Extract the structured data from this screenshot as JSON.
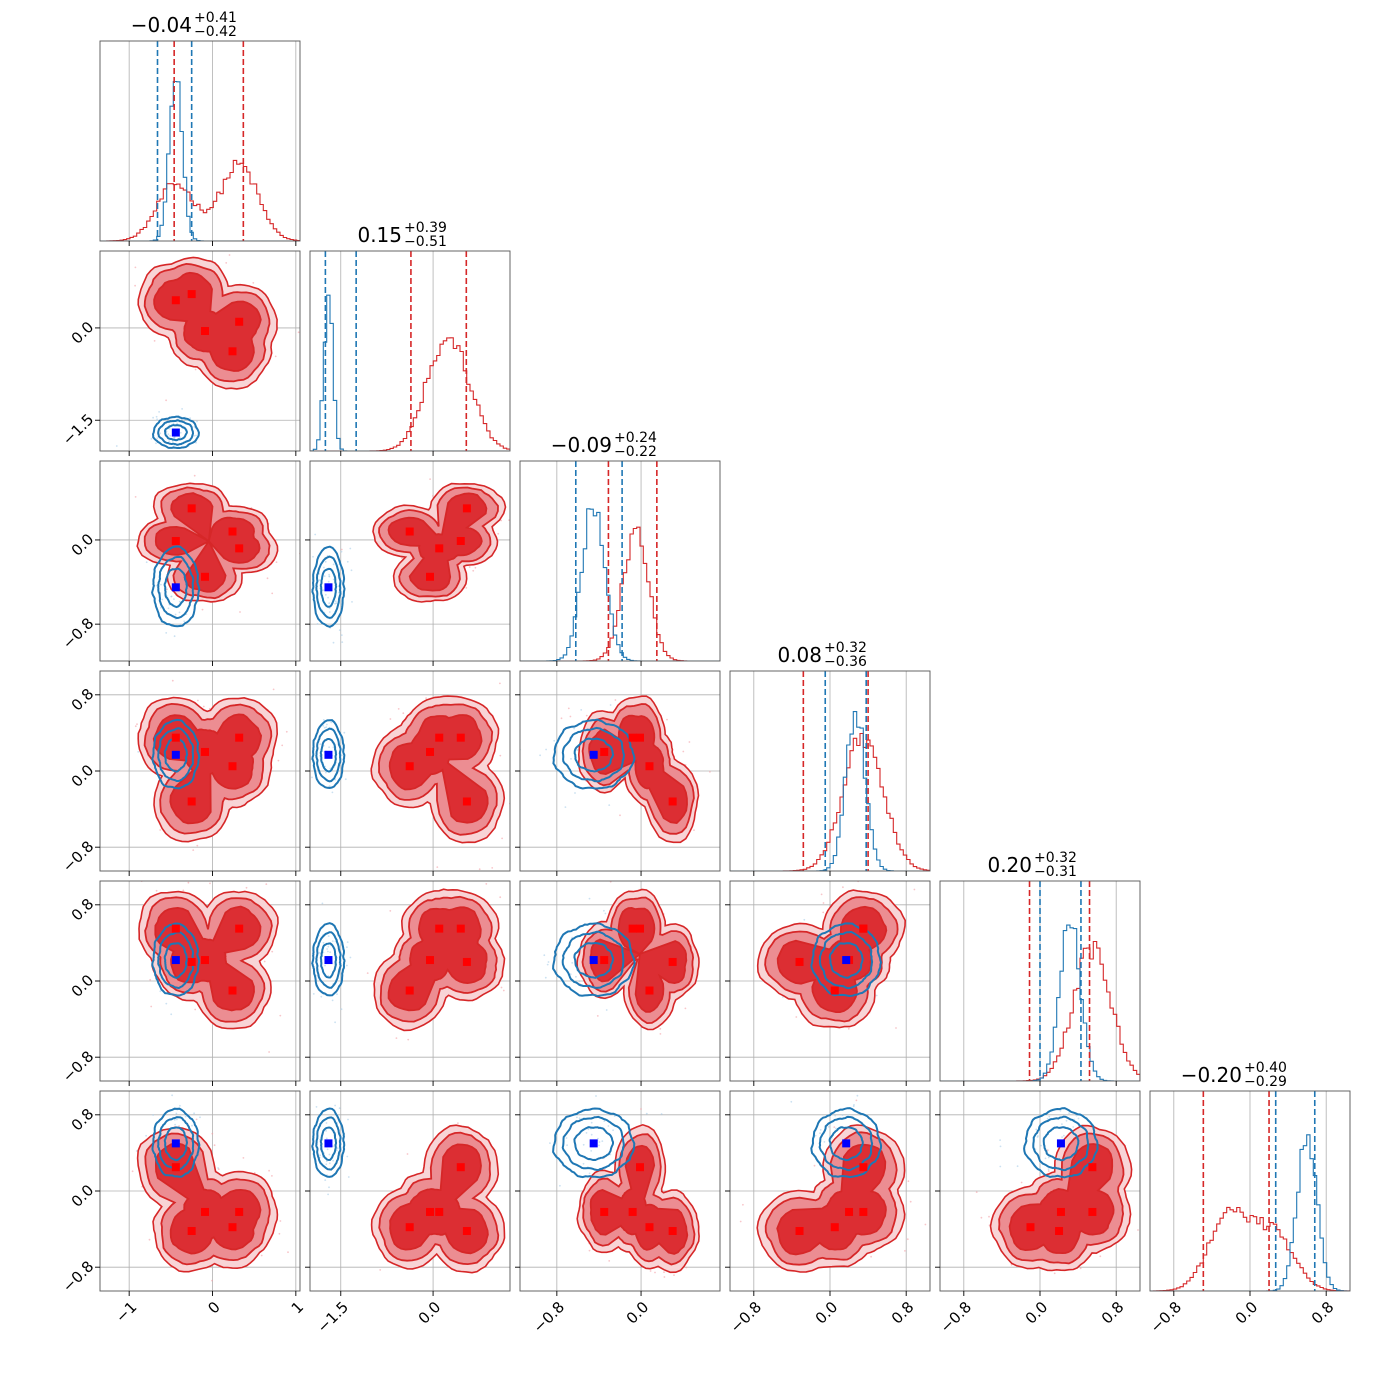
{
  "chart_data": {
    "type": "corner",
    "n_params": 6,
    "colors": {
      "red": "#d62728",
      "blue": "#1f77b4",
      "red_marker": "#ff0000",
      "blue_marker": "#0000ff",
      "grid": "#b0b0b0"
    },
    "ranges": [
      [
        -1.35,
        1.05
      ],
      [
        -2.0,
        1.25
      ],
      [
        -1.15,
        0.75
      ],
      [
        -1.05,
        1.05
      ],
      [
        -1.05,
        1.05
      ],
      [
        -1.05,
        1.05
      ]
    ],
    "ticks": [
      {
        "values": [
          -1,
          0,
          1
        ],
        "labels": [
          "−1",
          "0",
          "1"
        ]
      },
      {
        "values": [
          -1.5,
          0.0
        ],
        "labels": [
          "−1.5",
          "0.0"
        ]
      },
      {
        "values": [
          -0.8,
          0.0
        ],
        "labels": [
          "−0.8",
          "0.0"
        ]
      },
      {
        "values": [
          -0.8,
          0.0,
          0.8
        ],
        "labels": [
          "−0.8",
          "0.0",
          "0.8"
        ]
      },
      {
        "values": [
          -0.8,
          0.0,
          0.8
        ],
        "labels": [
          "−0.8",
          "0.0",
          "0.8"
        ]
      },
      {
        "values": [
          -0.8,
          0.0,
          0.8
        ],
        "labels": [
          "−0.8",
          "0.0",
          "0.8"
        ]
      }
    ],
    "titles": [
      {
        "value": "−0.04",
        "plus": "+0.41",
        "minus": "−0.42"
      },
      {
        "value": "0.15",
        "plus": "+0.39",
        "minus": "−0.51"
      },
      {
        "value": "−0.09",
        "plus": "+0.24",
        "minus": "−0.22"
      },
      {
        "value": "0.08",
        "plus": "+0.32",
        "minus": "−0.36"
      },
      {
        "value": "0.20",
        "plus": "+0.32",
        "minus": "−0.31"
      },
      {
        "value": "−0.20",
        "plus": "+0.40",
        "minus": "−0.29"
      }
    ],
    "red_quantiles": [
      [
        -0.46,
        0.37
      ],
      [
        -0.36,
        0.54
      ],
      [
        -0.31,
        0.15
      ],
      [
        -0.28,
        0.4
      ],
      [
        -0.11,
        0.52
      ],
      [
        -0.49,
        0.2
      ]
    ],
    "blue_quantiles": [
      [
        -0.66,
        -0.25
      ],
      [
        -1.75,
        -1.25
      ],
      [
        -0.62,
        -0.18
      ],
      [
        -0.05,
        0.38
      ],
      [
        0.0,
        0.43
      ],
      [
        0.27,
        0.68
      ]
    ],
    "red_modes": [
      [
        -0.44,
        0.47,
        0.24,
        0.32,
        -0.25,
        0.32,
        0.02,
        0.1,
        0.0,
        -0.07
      ],
      [
        0.45,
        0.45,
        -0.05,
        -0.38,
        -0.38,
        -0.05,
        0.1,
        0.55,
        0.55,
        0.1
      ],
      [
        -0.01,
        -0.35,
        0.08,
        -0.08,
        0.3,
        0.05,
        -0.27,
        -0.2,
        0.1,
        0.0
      ],
      [
        0.35,
        0.2,
        0.05,
        0.35,
        -0.32,
        -0.32,
        0.3,
        0.15,
        0.0,
        -0.1
      ],
      [
        0.55,
        0.22,
        -0.1,
        0.55,
        0.55,
        0.15,
        0.22,
        0.2,
        0.0,
        -0.15
      ],
      [
        0.25,
        -0.22,
        -0.38,
        -0.22,
        0.25,
        -0.22,
        -0.38,
        -0.2,
        0.3,
        -0.42
      ]
    ],
    "blue_modes": [
      [
        -0.44,
        -1.7
      ],
      [
        -0.44,
        -1.7
      ],
      [
        -0.44,
        -0.45
      ],
      [
        -0.44,
        -0.45
      ],
      [
        -0.44,
        0.17
      ],
      [
        -0.44,
        0.2
      ]
    ],
    "red_mode_list": [
      [
        -0.44,
        -0.09,
        0.24,
        0.32,
        -0.25
      ],
      [
        0.45,
        -0.05,
        -0.38,
        0.1,
        0.55
      ],
      [
        -0.01,
        -0.35,
        0.08,
        -0.08,
        0.3
      ],
      [
        0.35,
        0.2,
        0.05,
        0.35,
        -0.32
      ],
      [
        0.55,
        0.22,
        -0.1,
        0.55,
        0.2
      ],
      [
        0.25,
        -0.22,
        -0.38,
        -0.22,
        -0.42
      ]
    ],
    "blue_truth": [
      -0.44,
      -1.7,
      -0.45,
      0.17,
      0.22,
      0.5
    ]
  }
}
